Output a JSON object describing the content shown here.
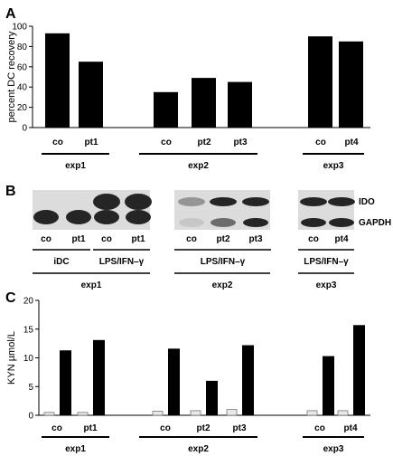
{
  "panels": {
    "a": "A",
    "b": "B",
    "c": "C"
  },
  "chart_data": [
    {
      "type": "bar",
      "panel": "A",
      "ylabel": "percent DC recovery",
      "ylim": [
        0,
        100
      ],
      "yticks": [
        "0",
        "20",
        "40",
        "60",
        "80",
        "100"
      ],
      "categories": [
        "co",
        "pt1",
        "co",
        "pt2",
        "pt3",
        "co",
        "pt4"
      ],
      "groups": [
        "exp1",
        "exp2",
        "exp3"
      ],
      "group_of_category": [
        0,
        0,
        1,
        1,
        1,
        2,
        2
      ],
      "values": [
        93,
        65,
        35,
        49,
        45,
        90,
        85
      ],
      "bar_color": "#000000"
    },
    {
      "type": "table",
      "panel": "B",
      "kind": "western-blot",
      "blots": [
        {
          "group": "exp1",
          "lanes": [
            "co",
            "pt1",
            "co",
            "pt1"
          ],
          "conditions": [
            "iDC",
            "LPS/IFN–γ"
          ]
        },
        {
          "group": "exp2",
          "lanes": [
            "co",
            "pt2",
            "pt3"
          ],
          "conditions": [
            "LPS/IFN–γ"
          ]
        },
        {
          "group": "exp3",
          "lanes": [
            "co",
            "pt4"
          ],
          "conditions": [
            "LPS/IFN–γ"
          ]
        }
      ],
      "band_labels": [
        "IDO",
        "GAPDH"
      ]
    },
    {
      "type": "bar",
      "panel": "C",
      "ylabel": "KYN µmol/L",
      "ylim": [
        0,
        20
      ],
      "yticks": [
        "0",
        "5",
        "10",
        "15",
        "20"
      ],
      "categories": [
        "co",
        "pt1",
        "co",
        "pt2",
        "pt3",
        "co",
        "pt4"
      ],
      "groups": [
        "exp1",
        "exp2",
        "exp3"
      ],
      "group_of_category": [
        0,
        0,
        1,
        1,
        1,
        2,
        2
      ],
      "series": [
        {
          "values": [
            0.5,
            0.5,
            0.7,
            0.8,
            1.0,
            0.8,
            0.8
          ],
          "color": "#e8e8e8"
        },
        {
          "values": [
            11.3,
            13.1,
            11.6,
            6.0,
            12.2,
            10.3,
            15.7
          ],
          "color": "#000000"
        }
      ]
    }
  ]
}
